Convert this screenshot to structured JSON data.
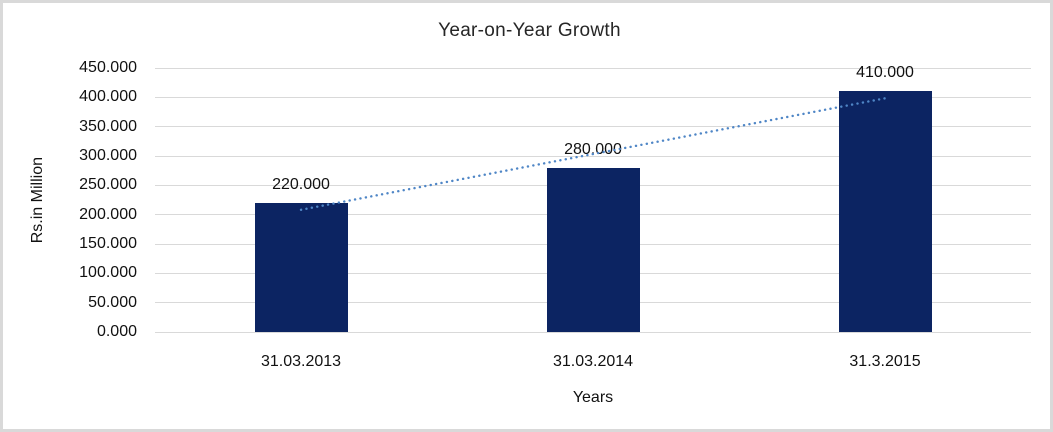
{
  "chart_data": {
    "type": "bar",
    "title": "Year-on-Year Growth",
    "xlabel": "Years",
    "ylabel": "Rs.in Million",
    "categories": [
      "31.03.2013",
      "31.03.2014",
      "31.3.2015"
    ],
    "values": [
      220,
      280,
      410
    ],
    "data_labels": [
      "220.000",
      "280.000",
      "410.000"
    ],
    "ylim": [
      0,
      450
    ],
    "ytick_step": 50,
    "ytick_labels": [
      "0.000",
      "50.000",
      "100.000",
      "150.000",
      "200.000",
      "250.000",
      "300.000",
      "350.000",
      "400.000",
      "450.000"
    ],
    "grid": true,
    "legend": false,
    "colors": {
      "bar": "#0c2462",
      "trendline": "#4f86c6",
      "gridline": "#d9d9d9",
      "text": "#111111",
      "frame_border": "#d9d9d9"
    },
    "trendline": {
      "type": "linear",
      "style": "dotted"
    }
  }
}
